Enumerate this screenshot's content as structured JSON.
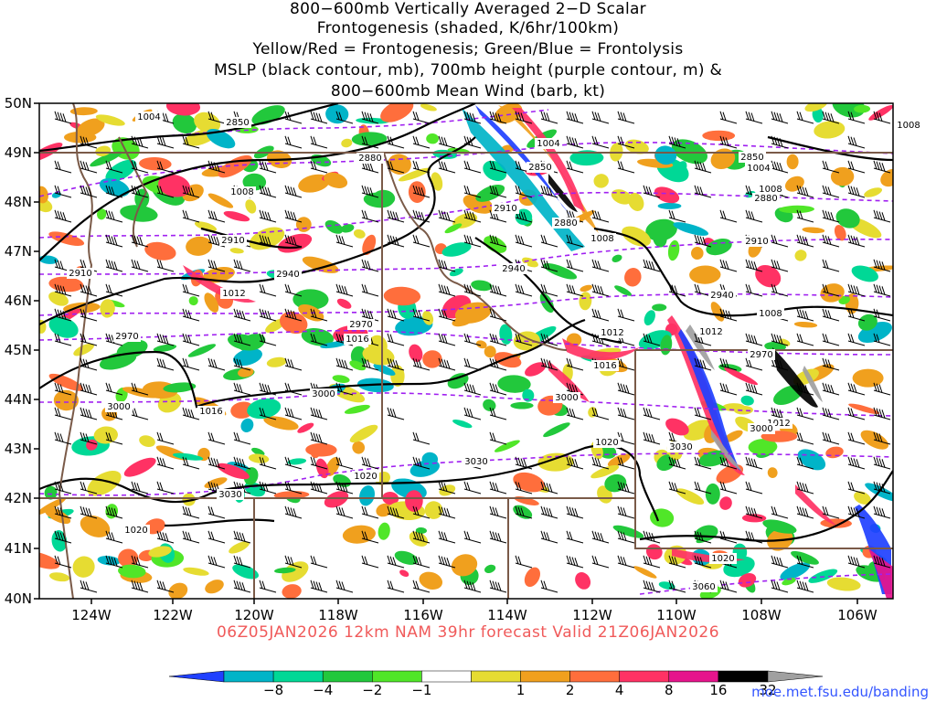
{
  "title": {
    "line1": "800−600mb Vertically Averaged 2−D Scalar",
    "line2": "Frontogenesis (shaded, K/6hr/100km)",
    "line3": "Yellow/Red = Frontogenesis;  Green/Blue = Frontolysis",
    "line4": "MSLP (black contour, mb), 700mb height (purple contour, m) &",
    "line5": "800−600mb Mean Wind (barb, kt)"
  },
  "lat_labels": [
    "50N",
    "49N",
    "48N",
    "47N",
    "46N",
    "45N",
    "44N",
    "43N",
    "42N",
    "41N",
    "40N"
  ],
  "lon_labels": [
    "124W",
    "122W",
    "120W",
    "118W",
    "116W",
    "114W",
    "112W",
    "110W",
    "108W",
    "106W"
  ],
  "valid_text": "06Z05JAN2026 12km NAM 39hr forecast Valid 21Z06JAN2026",
  "credit": "moe.met.fsu.edu/banding",
  "colorbar": {
    "ticks": [
      "−8",
      "−4",
      "−2",
      "−1",
      "1",
      "2",
      "4",
      "8",
      "16",
      "32"
    ],
    "colors": [
      "#2040ff",
      "#00b4c8",
      "#00d896",
      "#22c83c",
      "#50e628",
      "#ffffff",
      "#e6dc32",
      "#f0a01e",
      "#ff6e3c",
      "#ff3264",
      "#e6148c",
      "#000000",
      "#a0a0a0"
    ]
  },
  "mslp_labels": [
    "1004",
    "1004",
    "1004",
    "1008",
    "1008",
    "1008",
    "1008",
    "1008",
    "1012",
    "1012",
    "1012",
    "1012",
    "1016",
    "1016",
    "1016",
    "1020",
    "1020",
    "1020",
    "1020"
  ],
  "height_labels": [
    "2850",
    "2850",
    "2850",
    "2880",
    "2880",
    "2880",
    "2910",
    "2910",
    "2910",
    "2910",
    "2940",
    "2940",
    "2940",
    "2970",
    "2970",
    "2970",
    "3000",
    "3000",
    "3000",
    "3000",
    "3030",
    "3030",
    "3030",
    "3060"
  ]
}
